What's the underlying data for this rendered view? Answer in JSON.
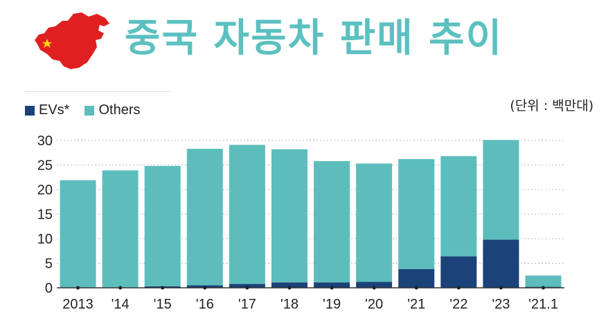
{
  "title": "중국 자동차 판매 추이",
  "unit_note": "(단위 : 백만대)",
  "colors": {
    "evs": "#1b4279",
    "others": "#5cbdbc",
    "title": "#5cc0c0",
    "map": "#e02020",
    "star": "#ffd700"
  },
  "icons": {
    "map": "china-map-icon"
  },
  "chart_data": {
    "type": "bar",
    "stacked": true,
    "categories": [
      "2013",
      "'14",
      "'15",
      "'16",
      "'17",
      "'18",
      "'19",
      "'20",
      "'21",
      "'22",
      "'23",
      "'21.1"
    ],
    "series": [
      {
        "name": "EVs*",
        "values": [
          0.0,
          0.1,
          0.3,
          0.5,
          0.8,
          1.1,
          1.1,
          1.2,
          3.8,
          6.4,
          9.8,
          0.2
        ]
      },
      {
        "name": "Others",
        "values": [
          21.9,
          23.8,
          24.5,
          27.8,
          28.3,
          27.1,
          24.7,
          24.1,
          22.4,
          20.4,
          20.3,
          2.3
        ]
      }
    ],
    "y_ticks": [
      "0",
      "5",
      "10",
      "15",
      "20",
      "25",
      "30"
    ],
    "ylim": [
      0,
      30
    ],
    "grid": true,
    "legend_position": "top-left"
  }
}
